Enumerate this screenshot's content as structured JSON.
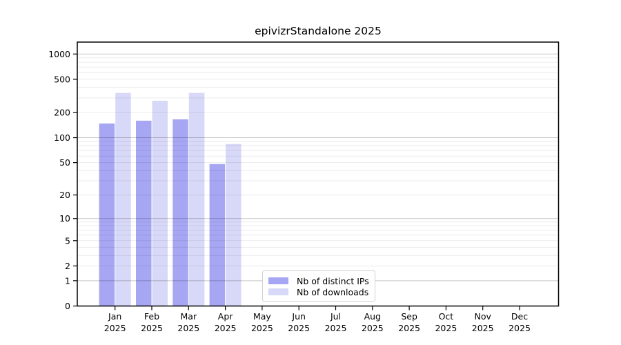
{
  "chart_data": {
    "type": "bar",
    "title": "epivizrStandalone 2025",
    "categories": [
      "Jan",
      "Feb",
      "Mar",
      "Apr",
      "May",
      "Jun",
      "Jul",
      "Aug",
      "Sep",
      "Oct",
      "Nov",
      "Dec"
    ],
    "year": "2025",
    "series": [
      {
        "name": "Nb of distinct IPs",
        "color": "#a6a6f3",
        "values": [
          148,
          160,
          166,
          48,
          0,
          0,
          0,
          0,
          0,
          0,
          0,
          0
        ]
      },
      {
        "name": "Nb of downloads",
        "color": "#d8d8f8",
        "values": [
          344,
          277,
          344,
          84,
          0,
          0,
          0,
          0,
          0,
          0,
          0,
          0
        ]
      }
    ],
    "y_ticks": [
      0,
      1,
      2,
      5,
      10,
      20,
      50,
      100,
      200,
      500,
      1000
    ],
    "y_scale": "log10(value+1)",
    "ylim": [
      0,
      1360
    ],
    "xlabel": "",
    "ylabel": "",
    "grid": "on",
    "legend_position": "inside-bottom-center"
  },
  "colors": {
    "background": "#ffffff",
    "frame": "#000000",
    "grid_major": "rgba(0,0,0,0.22)",
    "grid_minor": "rgba(0,0,0,0.08)",
    "tick_text": "#000000",
    "legend_border": "#d0d0d0"
  }
}
